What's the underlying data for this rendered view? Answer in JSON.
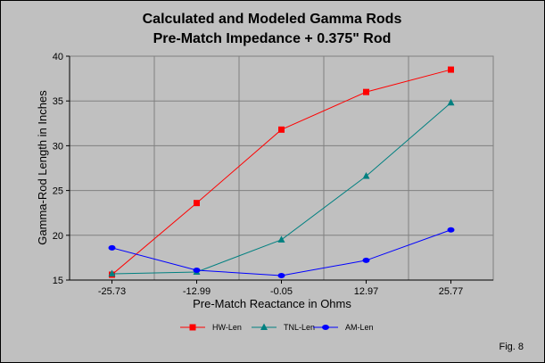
{
  "chart_data": {
    "type": "line",
    "title": "Calculated and Modeled Gamma Rods",
    "subtitle": "Pre-Match Impedance + 0.375\" Rod",
    "xlabel": "Pre-Match Reactance in Ohms",
    "ylabel": "Gamma-Rod Length in Inches",
    "categories": [
      "-25.73",
      "-12.99",
      "-0.05",
      "12.97",
      "25.77"
    ],
    "ylim": [
      15,
      40
    ],
    "yticks": [
      "15",
      "20",
      "25",
      "30",
      "35",
      "40"
    ],
    "grid": true,
    "legend": "bottom",
    "series": [
      {
        "name": "HW-Len",
        "color": "#ff0000",
        "marker": "square",
        "values": [
          15.6,
          23.6,
          31.8,
          36.0,
          38.5
        ]
      },
      {
        "name": "TNL-Len",
        "color": "#008080",
        "marker": "triangle",
        "values": [
          15.7,
          15.9,
          19.5,
          26.6,
          34.8
        ]
      },
      {
        "name": "AM-Len",
        "color": "#0000ff",
        "marker": "circle",
        "values": [
          18.6,
          16.1,
          15.5,
          17.2,
          20.6
        ]
      }
    ]
  },
  "figure_label": "Fig. 8"
}
